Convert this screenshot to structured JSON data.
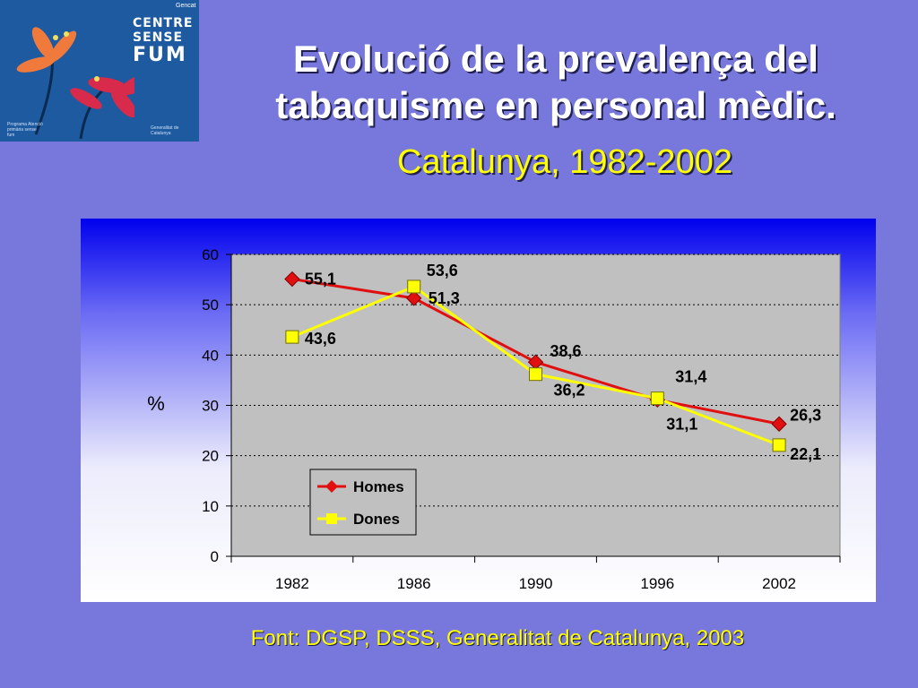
{
  "logo": {
    "brand_line1": "CENTRE",
    "brand_line2": "SENSE",
    "brand_line3": "FUM",
    "gov_mark": "Gencat ",
    "small_text": "Programa Atenció primària sense fum",
    "small_right": "Generalitat de Catalunya"
  },
  "title": "Evolució de la prevalença del tabaquisme en personal mèdic.",
  "subtitle": "Catalunya, 1982-2002",
  "source": "Font: DGSP, DSSS, Generalitat de Catalunya, 2003",
  "colors": {
    "background": "#7878dc",
    "homes": "#e01010",
    "dones": "#ffff00",
    "plot_area": "#c0c0c0"
  },
  "chart_data": {
    "type": "line",
    "categories": [
      "1982",
      "1986",
      "1990",
      "1996",
      "2002"
    ],
    "ylabel": "%",
    "ylim": [
      0,
      60
    ],
    "yticks": [
      "0",
      "10",
      "20",
      "30",
      "40",
      "50",
      "60"
    ],
    "grid": true,
    "legend_placement": "bottom-left",
    "series": [
      {
        "name": "Homes",
        "values": [
          55.1,
          51.3,
          38.6,
          31.1,
          26.3
        ],
        "labels": [
          "55,1",
          "51,3",
          "38,6",
          "31,1",
          "26,3"
        ],
        "color": "#e01010",
        "marker": "diamond"
      },
      {
        "name": "Dones",
        "values": [
          43.6,
          53.6,
          36.2,
          31.4,
          22.1
        ],
        "labels": [
          "43,6",
          "53,6",
          "36,2",
          "31,4",
          "22,1"
        ],
        "color": "#ffff00",
        "marker": "square"
      }
    ]
  }
}
